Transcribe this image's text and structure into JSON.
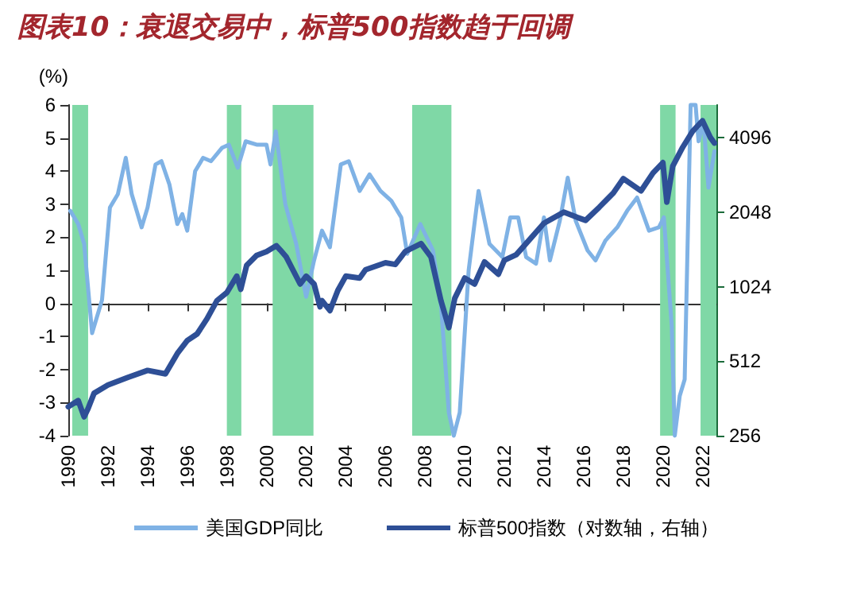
{
  "chart_data": {
    "type": "line",
    "title": "图表10：衰退交易中，标普500指数趋于回调",
    "ylabel": "(%)",
    "xlim": [
      1990,
      2022.7
    ],
    "xticks": [
      1990,
      1992,
      1994,
      1996,
      1998,
      2000,
      2002,
      2004,
      2006,
      2008,
      2010,
      2012,
      2014,
      2016,
      2018,
      2020,
      2022
    ],
    "ylim": [
      -4,
      6
    ],
    "yticks": [
      -4,
      -3,
      -2,
      -1,
      0,
      1,
      2,
      3,
      4,
      5,
      6
    ],
    "y2lim": [
      256,
      5560
    ],
    "y2ticks": [
      256,
      512,
      1024,
      2048,
      4096
    ],
    "log": "y2",
    "legend": "bottom",
    "marker": "none",
    "bands": [
      {
        "axis": "x",
        "from": 1990.2,
        "to": 1991.0,
        "color": "#7fd8a6"
      },
      {
        "axis": "x",
        "from": 1998.0,
        "to": 1998.73,
        "color": "#7fd8a6"
      },
      {
        "axis": "x",
        "from": 2000.31,
        "to": 2002.37,
        "color": "#7fd8a6"
      },
      {
        "axis": "x",
        "from": 2007.35,
        "to": 2009.33,
        "color": "#7fd8a6"
      },
      {
        "axis": "x",
        "from": 2019.86,
        "to": 2020.64,
        "color": "#7fd8a6"
      },
      {
        "axis": "x",
        "from": 2021.9,
        "to": 2022.7,
        "color": "#7fd8a6"
      }
    ],
    "series": [
      {
        "name": "美国GDP同比",
        "color": "#7fb2e5",
        "x": [
          1990.1,
          1990.5,
          1990.8,
          1991.2,
          1991.7,
          1992.1,
          1992.5,
          1992.9,
          1993.2,
          1993.7,
          1994.0,
          1994.4,
          1994.7,
          1995.1,
          1995.5,
          1995.75,
          1996.0,
          1996.4,
          1996.8,
          1997.2,
          1997.75,
          1998.1,
          1998.55,
          1998.95,
          1999.5,
          2000.0,
          2000.2,
          2000.47,
          2000.95,
          2001.5,
          2001.9,
          2002.0,
          2002.4,
          2002.8,
          2003.2,
          2003.75,
          2004.15,
          2004.7,
          2005.2,
          2005.75,
          2006.3,
          2006.8,
          2007.1,
          2007.76,
          2008.4,
          2008.8,
          2009.2,
          2009.45,
          2009.75,
          2010.2,
          2010.7,
          2011.25,
          2011.9,
          2012.3,
          2012.7,
          2013.1,
          2013.6,
          2014.0,
          2014.3,
          2014.8,
          2015.2,
          2015.6,
          2016.2,
          2016.6,
          2017.1,
          2017.7,
          2018.2,
          2018.7,
          2019.3,
          2019.8,
          2020.05,
          2020.45,
          2020.6,
          2020.85,
          2021.1,
          2021.4,
          2021.65,
          2021.8,
          2022.05,
          2022.3,
          2022.6
        ],
        "values": [
          2.8,
          2.4,
          1.8,
          -0.9,
          0.1,
          2.9,
          3.3,
          4.4,
          3.3,
          2.3,
          2.9,
          4.2,
          4.3,
          3.6,
          2.4,
          2.7,
          2.2,
          4.0,
          4.4,
          4.3,
          4.7,
          4.8,
          4.1,
          4.9,
          4.8,
          4.8,
          4.2,
          5.2,
          3.0,
          1.8,
          0.5,
          0.2,
          1.3,
          2.2,
          1.7,
          4.2,
          4.3,
          3.4,
          3.9,
          3.4,
          3.1,
          2.6,
          1.5,
          2.4,
          1.6,
          0.0,
          -3.3,
          -4.0,
          -3.3,
          1.0,
          3.4,
          1.8,
          1.4,
          2.6,
          2.6,
          1.4,
          1.2,
          2.6,
          1.3,
          2.5,
          3.8,
          2.5,
          1.6,
          1.3,
          1.9,
          2.3,
          2.8,
          3.2,
          2.2,
          2.3,
          2.6,
          -0.7,
          -4,
          -2.8,
          -2.3,
          6,
          6,
          4.9,
          5.5,
          3.5,
          4.6
        ]
      },
      {
        "name": "标普500指数（对数轴，右轴）",
        "color": "#2e4f96",
        "axis": "y2",
        "x": [
          1990.0,
          1990.5,
          1990.8,
          1991.0,
          1991.3,
          1992.0,
          1993.0,
          1994.0,
          1994.9,
          1995.5,
          1996.0,
          1996.5,
          1997.0,
          1997.5,
          1998.0,
          1998.5,
          1998.7,
          1999.0,
          1999.5,
          2000.0,
          2000.5,
          2000.7,
          2001.0,
          2001.7,
          2002.0,
          2002.4,
          2002.7,
          2002.8,
          2003.2,
          2003.6,
          2004.0,
          2004.7,
          2005.0,
          2006.0,
          2006.5,
          2007.0,
          2007.8,
          2008.3,
          2008.8,
          2009.2,
          2009.5,
          2010.0,
          2010.5,
          2011.0,
          2011.7,
          2012.0,
          2012.6,
          2013.0,
          2014.0,
          2015.0,
          2015.7,
          2016.1,
          2016.8,
          2017.5,
          2018.0,
          2018.9,
          2019.5,
          2020.0,
          2020.2,
          2020.5,
          2021.0,
          2021.5,
          2022.0,
          2022.4,
          2022.6
        ],
        "values": [
          335,
          355,
          305,
          330,
          380,
          410,
          440,
          470,
          455,
          550,
          620,
          660,
          760,
          900,
          970,
          1130,
          1000,
          1250,
          1370,
          1420,
          1500,
          1440,
          1350,
          1050,
          1130,
          1050,
          850,
          900,
          820,
          990,
          1130,
          1110,
          1200,
          1280,
          1260,
          1420,
          1530,
          1350,
          900,
          700,
          920,
          1110,
          1050,
          1290,
          1150,
          1310,
          1380,
          1500,
          1850,
          2050,
          1950,
          1900,
          2150,
          2450,
          2800,
          2500,
          2950,
          3250,
          2250,
          3150,
          3750,
          4350,
          4800,
          4100,
          3900
        ]
      }
    ]
  }
}
